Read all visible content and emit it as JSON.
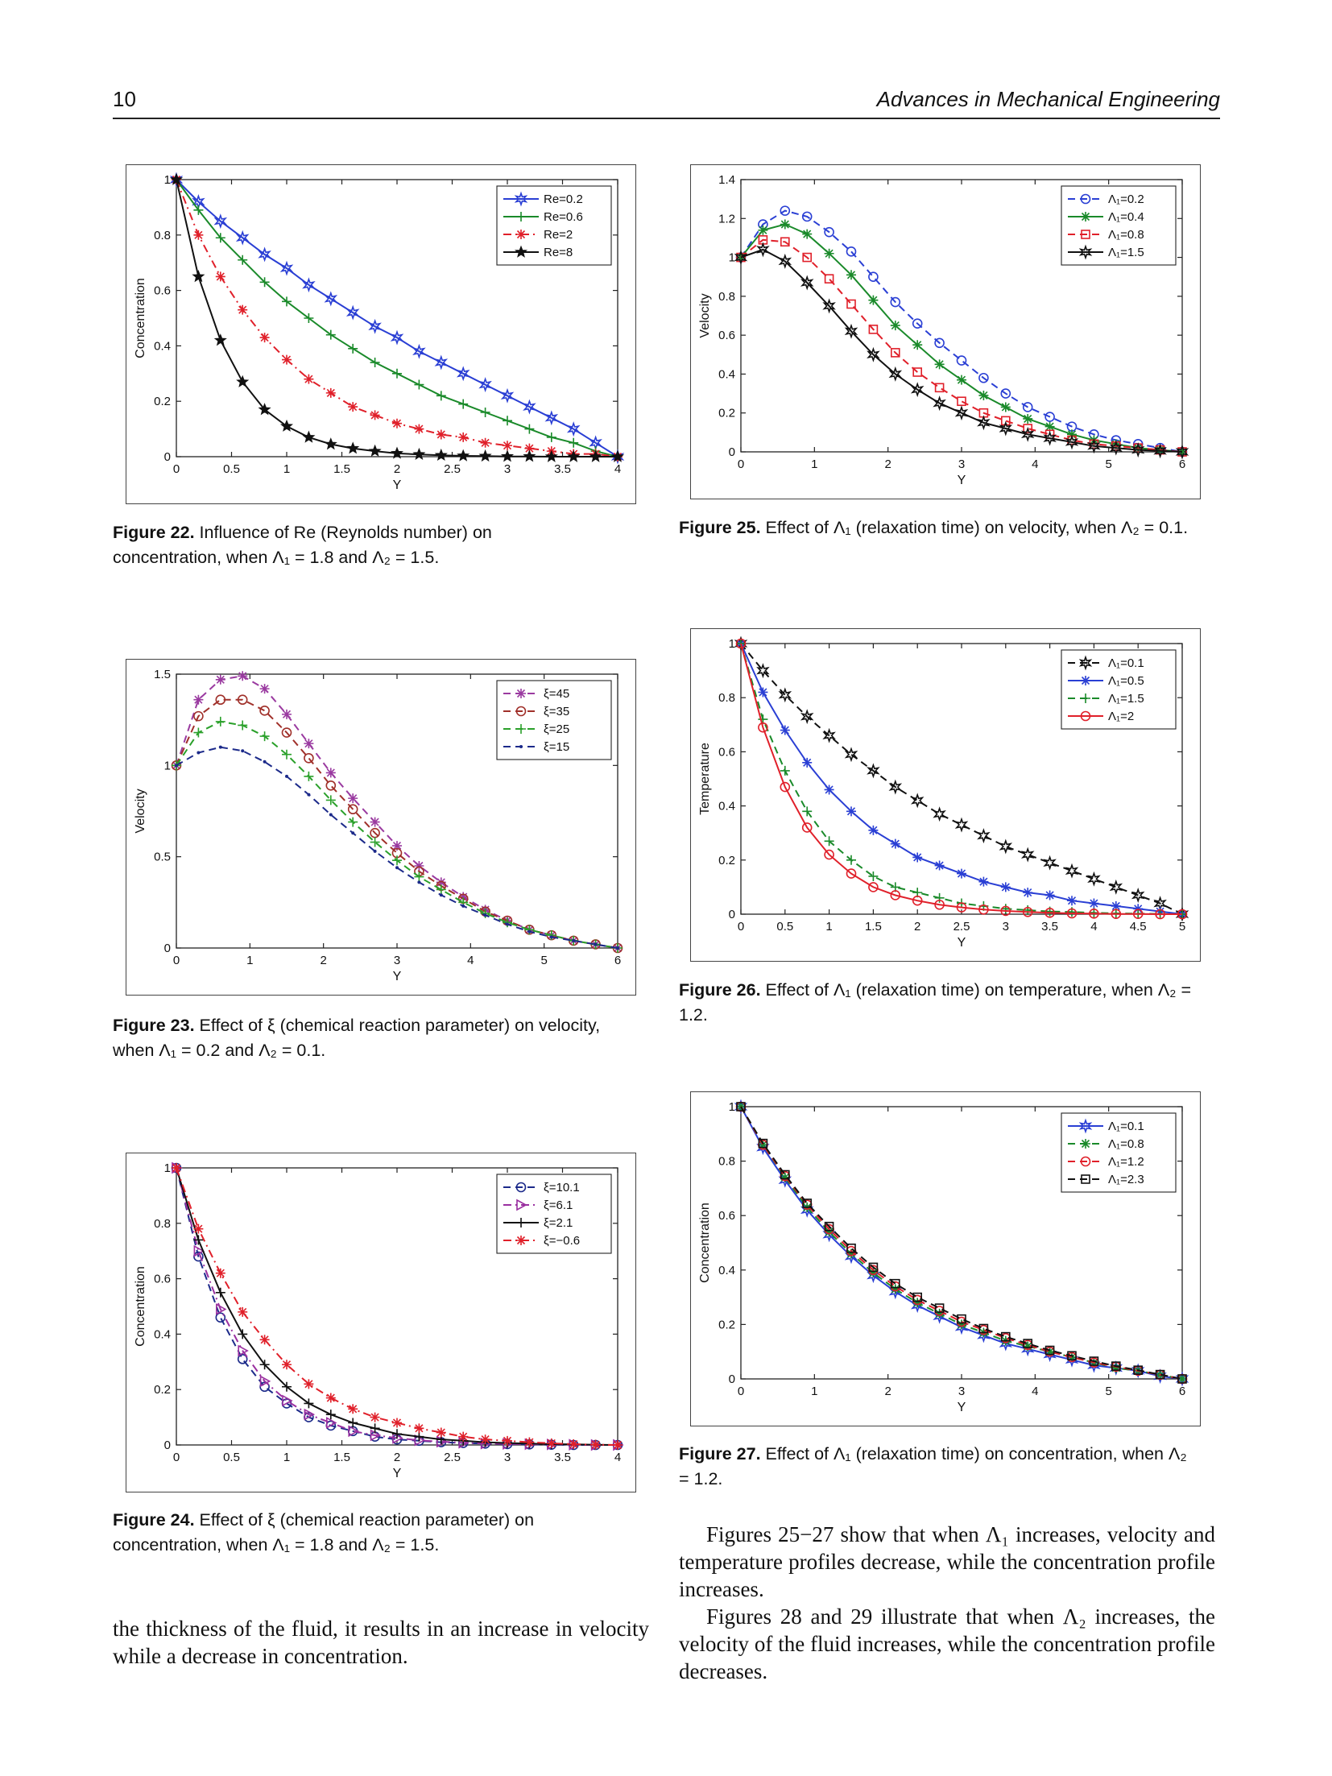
{
  "header": {
    "page_number": "10",
    "journal": "Advances in Mechanical Engineering"
  },
  "captions": {
    "fig22": {
      "label": "Figure 22.",
      "text": "Influence of Re (Reynolds number) on concentration, when Λ₁ = 1.8 and Λ₂ = 1.5."
    },
    "fig23": {
      "label": "Figure 23.",
      "text": "Effect of ξ (chemical reaction parameter) on velocity, when Λ₁ = 0.2 and Λ₂ = 0.1."
    },
    "fig24": {
      "label": "Figure 24.",
      "text": "Effect of ξ (chemical reaction parameter) on concentration, when Λ₁ = 1.8 and Λ₂ = 1.5."
    },
    "fig25": {
      "label": "Figure 25.",
      "text": "Effect of Λ₁ (relaxation time) on velocity, when Λ₂ = 0.1."
    },
    "fig26": {
      "label": "Figure 26.",
      "text": "Effect of Λ₁ (relaxation time) on temperature, when Λ₂ = 1.2."
    },
    "fig27": {
      "label": "Figure 27.",
      "text": "Effect of Λ₁ (relaxation time) on concentration, when Λ₂ = 1.2."
    }
  },
  "body": {
    "left_para": "the thickness of the fluid, it results in an increase in velocity while a decrease in concentration.",
    "right_para1": "Figures 25−27 show that when Λ₁ increases, velocity and temperature profiles decrease, while the concentration profile increases.",
    "right_para2": "Figures 28 and 29 illustrate that when Λ₂ increases, the velocity of the fluid increases, while the concentration profile decreases."
  },
  "chart_data": [
    {
      "id": "fig22",
      "type": "line",
      "xlabel": "Y",
      "ylabel": "Concentration",
      "xlim": [
        0,
        4
      ],
      "ylim": [
        0,
        1
      ],
      "xticks": [
        0,
        0.5,
        1,
        1.5,
        2,
        2.5,
        3,
        3.5,
        4
      ],
      "yticks": [
        0,
        0.2,
        0.4,
        0.6,
        0.8,
        1
      ],
      "legend_position": "top-right",
      "x": [
        0,
        0.2,
        0.4,
        0.6,
        0.8,
        1.0,
        1.2,
        1.4,
        1.6,
        1.8,
        2.0,
        2.2,
        2.4,
        2.6,
        2.8,
        3.0,
        3.2,
        3.4,
        3.6,
        3.8,
        4.0
      ],
      "series": [
        {
          "name": "Re=0.2",
          "color": "#2a3fd4",
          "dash": "solid",
          "marker": "star6",
          "values": [
            1.0,
            0.92,
            0.85,
            0.79,
            0.73,
            0.68,
            0.62,
            0.57,
            0.52,
            0.47,
            0.43,
            0.38,
            0.34,
            0.3,
            0.26,
            0.22,
            0.18,
            0.14,
            0.1,
            0.05,
            0.0
          ]
        },
        {
          "name": "Re=0.6",
          "color": "#1a8a2a",
          "dash": "solid",
          "marker": "plus",
          "values": [
            1.0,
            0.89,
            0.79,
            0.71,
            0.63,
            0.56,
            0.5,
            0.44,
            0.39,
            0.34,
            0.3,
            0.26,
            0.22,
            0.19,
            0.16,
            0.13,
            0.1,
            0.07,
            0.05,
            0.02,
            0.0
          ]
        },
        {
          "name": "Re=2",
          "color": "#e0202a",
          "dash": "dashdot",
          "marker": "asterisk",
          "values": [
            1.0,
            0.8,
            0.65,
            0.53,
            0.43,
            0.35,
            0.28,
            0.23,
            0.18,
            0.15,
            0.12,
            0.1,
            0.08,
            0.07,
            0.05,
            0.04,
            0.03,
            0.02,
            0.01,
            0.01,
            0.0
          ]
        },
        {
          "name": "Re=8",
          "color": "#111111",
          "dash": "solid",
          "marker": "star5",
          "values": [
            1.0,
            0.65,
            0.42,
            0.27,
            0.17,
            0.11,
            0.07,
            0.045,
            0.03,
            0.02,
            0.012,
            0.008,
            0.005,
            0.003,
            0.002,
            0.001,
            0.001,
            0.0,
            0.0,
            0.0,
            0.0
          ]
        }
      ]
    },
    {
      "id": "fig23",
      "type": "line",
      "xlabel": "Y",
      "ylabel": "Velocity",
      "xlim": [
        0,
        6
      ],
      "ylim": [
        0,
        1.5
      ],
      "xticks": [
        0,
        1,
        2,
        3,
        4,
        5,
        6
      ],
      "yticks": [
        0,
        0.5,
        1,
        1.5
      ],
      "legend_position": "top-right",
      "x": [
        0,
        0.3,
        0.6,
        0.9,
        1.2,
        1.5,
        1.8,
        2.1,
        2.4,
        2.7,
        3.0,
        3.3,
        3.6,
        3.9,
        4.2,
        4.5,
        4.8,
        5.1,
        5.4,
        5.7,
        6.0
      ],
      "series": [
        {
          "name": "ξ=45",
          "color": "#9a3aa0",
          "dash": "dash",
          "marker": "asterisk",
          "values": [
            1.0,
            1.36,
            1.47,
            1.49,
            1.42,
            1.28,
            1.12,
            0.96,
            0.82,
            0.69,
            0.56,
            0.45,
            0.36,
            0.28,
            0.21,
            0.15,
            0.1,
            0.07,
            0.04,
            0.02,
            0.0
          ]
        },
        {
          "name": "ξ=35",
          "color": "#a0302a",
          "dash": "dash",
          "marker": "circle",
          "values": [
            1.0,
            1.27,
            1.36,
            1.36,
            1.3,
            1.18,
            1.04,
            0.89,
            0.76,
            0.63,
            0.52,
            0.42,
            0.34,
            0.27,
            0.2,
            0.15,
            0.1,
            0.07,
            0.04,
            0.02,
            0.0
          ]
        },
        {
          "name": "ξ=25",
          "color": "#2aa02a",
          "dash": "dash",
          "marker": "plus",
          "values": [
            1.0,
            1.18,
            1.24,
            1.22,
            1.16,
            1.06,
            0.94,
            0.81,
            0.69,
            0.58,
            0.48,
            0.39,
            0.32,
            0.25,
            0.19,
            0.14,
            0.1,
            0.07,
            0.04,
            0.02,
            0.0
          ]
        },
        {
          "name": "ξ=15",
          "color": "#1c2a8a",
          "dash": "dash",
          "marker": "dot",
          "values": [
            1.0,
            1.07,
            1.1,
            1.08,
            1.02,
            0.94,
            0.84,
            0.73,
            0.63,
            0.53,
            0.44,
            0.36,
            0.29,
            0.23,
            0.18,
            0.13,
            0.09,
            0.06,
            0.04,
            0.02,
            0.0
          ]
        }
      ]
    },
    {
      "id": "fig24",
      "type": "line",
      "xlabel": "Y",
      "ylabel": "Concentration",
      "xlim": [
        0,
        4
      ],
      "ylim": [
        0,
        1
      ],
      "xticks": [
        0,
        0.5,
        1,
        1.5,
        2,
        2.5,
        3,
        3.5,
        4
      ],
      "yticks": [
        0,
        0.2,
        0.4,
        0.6,
        0.8,
        1
      ],
      "legend_position": "top-right",
      "x": [
        0,
        0.2,
        0.4,
        0.6,
        0.8,
        1.0,
        1.2,
        1.4,
        1.6,
        1.8,
        2.0,
        2.2,
        2.4,
        2.6,
        2.8,
        3.0,
        3.2,
        3.4,
        3.6,
        3.8,
        4.0
      ],
      "series": [
        {
          "name": "ξ=10.1",
          "color": "#1c2a8a",
          "dash": "dash",
          "marker": "circle",
          "values": [
            1.0,
            0.68,
            0.46,
            0.31,
            0.21,
            0.15,
            0.1,
            0.07,
            0.05,
            0.03,
            0.02,
            0.015,
            0.01,
            0.007,
            0.005,
            0.003,
            0.002,
            0.001,
            0.0,
            0.0,
            0.0
          ]
        },
        {
          "name": "ξ=6.1",
          "color": "#9a30a0",
          "dash": "dashdot",
          "marker": "triangle",
          "values": [
            1.0,
            0.7,
            0.49,
            0.34,
            0.23,
            0.16,
            0.11,
            0.08,
            0.05,
            0.035,
            0.025,
            0.017,
            0.012,
            0.008,
            0.005,
            0.004,
            0.003,
            0.002,
            0.001,
            0.0,
            0.0
          ]
        },
        {
          "name": "ξ=2.1",
          "color": "#111111",
          "dash": "solid",
          "marker": "plus",
          "values": [
            1.0,
            0.74,
            0.55,
            0.4,
            0.29,
            0.21,
            0.15,
            0.11,
            0.08,
            0.06,
            0.04,
            0.03,
            0.02,
            0.015,
            0.01,
            0.007,
            0.005,
            0.003,
            0.002,
            0.001,
            0.0
          ]
        },
        {
          "name": "ξ=−0.6",
          "color": "#e0202a",
          "dash": "dashdot",
          "marker": "asterisk",
          "values": [
            1.0,
            0.78,
            0.62,
            0.48,
            0.38,
            0.29,
            0.22,
            0.17,
            0.13,
            0.1,
            0.08,
            0.06,
            0.045,
            0.03,
            0.02,
            0.015,
            0.01,
            0.006,
            0.003,
            0.001,
            0.0
          ]
        }
      ]
    },
    {
      "id": "fig25",
      "type": "line",
      "xlabel": "Y",
      "ylabel": "Velocity",
      "xlim": [
        0,
        6
      ],
      "ylim": [
        0,
        1.4
      ],
      "xticks": [
        0,
        1,
        2,
        3,
        4,
        5,
        6
      ],
      "yticks": [
        0,
        0.2,
        0.4,
        0.6,
        0.8,
        1,
        1.2,
        1.4
      ],
      "legend_position": "top-right",
      "x": [
        0,
        0.3,
        0.6,
        0.9,
        1.2,
        1.5,
        1.8,
        2.1,
        2.4,
        2.7,
        3.0,
        3.3,
        3.6,
        3.9,
        4.2,
        4.5,
        4.8,
        5.1,
        5.4,
        5.7,
        6.0
      ],
      "series": [
        {
          "name": "Λ₁=0.2",
          "color": "#2a3fd4",
          "dash": "dash",
          "marker": "circle",
          "values": [
            1.0,
            1.17,
            1.24,
            1.21,
            1.13,
            1.03,
            0.9,
            0.77,
            0.66,
            0.56,
            0.47,
            0.38,
            0.3,
            0.23,
            0.18,
            0.13,
            0.09,
            0.06,
            0.04,
            0.02,
            0.0
          ]
        },
        {
          "name": "Λ₁=0.4",
          "color": "#1a8a2a",
          "dash": "solid",
          "marker": "asterisk",
          "values": [
            1.0,
            1.14,
            1.17,
            1.12,
            1.02,
            0.91,
            0.78,
            0.65,
            0.55,
            0.45,
            0.37,
            0.29,
            0.23,
            0.17,
            0.13,
            0.09,
            0.06,
            0.04,
            0.02,
            0.01,
            0.0
          ]
        },
        {
          "name": "Λ₁=0.8",
          "color": "#e0202a",
          "dash": "dash",
          "marker": "square",
          "values": [
            1.0,
            1.09,
            1.08,
            1.0,
            0.89,
            0.76,
            0.63,
            0.51,
            0.41,
            0.33,
            0.26,
            0.2,
            0.16,
            0.12,
            0.09,
            0.06,
            0.04,
            0.03,
            0.02,
            0.01,
            0.0
          ]
        },
        {
          "name": "Λ₁=1.5",
          "color": "#111111",
          "dash": "solid",
          "marker": "star6",
          "values": [
            1.0,
            1.04,
            0.98,
            0.87,
            0.75,
            0.62,
            0.5,
            0.4,
            0.32,
            0.25,
            0.2,
            0.15,
            0.12,
            0.09,
            0.07,
            0.05,
            0.03,
            0.02,
            0.01,
            0.005,
            0.0
          ]
        }
      ]
    },
    {
      "id": "fig26",
      "type": "line",
      "xlabel": "Y",
      "ylabel": "Temperature",
      "xlim": [
        0,
        5
      ],
      "ylim": [
        0,
        1
      ],
      "xticks": [
        0,
        0.5,
        1,
        1.5,
        2,
        2.5,
        3,
        3.5,
        4,
        4.5,
        5
      ],
      "yticks": [
        0,
        0.2,
        0.4,
        0.6,
        0.8,
        1
      ],
      "legend_position": "top-right",
      "x": [
        0,
        0.25,
        0.5,
        0.75,
        1.0,
        1.25,
        1.5,
        1.75,
        2.0,
        2.25,
        2.5,
        2.75,
        3.0,
        3.25,
        3.5,
        3.75,
        4.0,
        4.25,
        4.5,
        4.75,
        5.0
      ],
      "series": [
        {
          "name": "Λ₁=0.1",
          "color": "#111111",
          "dash": "dash",
          "marker": "star6",
          "values": [
            1.0,
            0.9,
            0.81,
            0.73,
            0.66,
            0.59,
            0.53,
            0.47,
            0.42,
            0.37,
            0.33,
            0.29,
            0.25,
            0.22,
            0.19,
            0.16,
            0.13,
            0.1,
            0.07,
            0.04,
            0.0
          ]
        },
        {
          "name": "Λ₁=0.5",
          "color": "#2a3fd4",
          "dash": "solid",
          "marker": "asterisk",
          "values": [
            1.0,
            0.82,
            0.68,
            0.56,
            0.46,
            0.38,
            0.31,
            0.26,
            0.21,
            0.18,
            0.15,
            0.12,
            0.1,
            0.08,
            0.07,
            0.05,
            0.04,
            0.03,
            0.02,
            0.01,
            0.0
          ]
        },
        {
          "name": "Λ₁=1.5",
          "color": "#1a8a2a",
          "dash": "dash",
          "marker": "plus",
          "values": [
            1.0,
            0.72,
            0.53,
            0.38,
            0.27,
            0.2,
            0.14,
            0.1,
            0.08,
            0.06,
            0.04,
            0.03,
            0.02,
            0.015,
            0.01,
            0.008,
            0.005,
            0.003,
            0.002,
            0.001,
            0.0
          ]
        },
        {
          "name": "Λ₁=2",
          "color": "#e0202a",
          "dash": "solid",
          "marker": "circle",
          "values": [
            1.0,
            0.69,
            0.47,
            0.32,
            0.22,
            0.15,
            0.1,
            0.07,
            0.05,
            0.035,
            0.025,
            0.017,
            0.012,
            0.008,
            0.005,
            0.003,
            0.002,
            0.001,
            0.001,
            0.0,
            0.0
          ]
        }
      ]
    },
    {
      "id": "fig27",
      "type": "line",
      "xlabel": "Y",
      "ylabel": "Concentration",
      "xlim": [
        0,
        6
      ],
      "ylim": [
        0,
        1
      ],
      "xticks": [
        0,
        1,
        2,
        3,
        4,
        5,
        6
      ],
      "yticks": [
        0,
        0.2,
        0.4,
        0.6,
        0.8,
        1
      ],
      "legend_position": "top-right",
      "x": [
        0,
        0.3,
        0.6,
        0.9,
        1.2,
        1.5,
        1.8,
        2.1,
        2.4,
        2.7,
        3.0,
        3.3,
        3.6,
        3.9,
        4.2,
        4.5,
        4.8,
        5.1,
        5.4,
        5.7,
        6.0
      ],
      "series": [
        {
          "name": "Λ₁=0.1",
          "color": "#2a3fd4",
          "dash": "solid",
          "marker": "star6",
          "values": [
            1.0,
            0.85,
            0.73,
            0.62,
            0.53,
            0.45,
            0.38,
            0.32,
            0.27,
            0.23,
            0.19,
            0.16,
            0.13,
            0.11,
            0.09,
            0.07,
            0.05,
            0.04,
            0.03,
            0.01,
            0.0
          ]
        },
        {
          "name": "Λ₁=0.8",
          "color": "#1a8a2a",
          "dash": "dash",
          "marker": "asterisk",
          "values": [
            1.0,
            0.86,
            0.74,
            0.63,
            0.54,
            0.46,
            0.39,
            0.33,
            0.28,
            0.24,
            0.2,
            0.17,
            0.14,
            0.12,
            0.1,
            0.08,
            0.06,
            0.04,
            0.03,
            0.015,
            0.0
          ]
        },
        {
          "name": "Λ₁=1.2",
          "color": "#e0202a",
          "dash": "dash",
          "marker": "circle",
          "values": [
            1.0,
            0.86,
            0.745,
            0.64,
            0.55,
            0.47,
            0.4,
            0.34,
            0.29,
            0.25,
            0.21,
            0.18,
            0.15,
            0.125,
            0.1,
            0.08,
            0.06,
            0.045,
            0.03,
            0.015,
            0.0
          ]
        },
        {
          "name": "Λ₁=2.3",
          "color": "#111111",
          "dash": "dash",
          "marker": "square",
          "values": [
            1.0,
            0.865,
            0.75,
            0.645,
            0.56,
            0.48,
            0.41,
            0.35,
            0.3,
            0.26,
            0.22,
            0.185,
            0.155,
            0.13,
            0.105,
            0.085,
            0.065,
            0.047,
            0.032,
            0.016,
            0.0
          ]
        }
      ]
    }
  ]
}
